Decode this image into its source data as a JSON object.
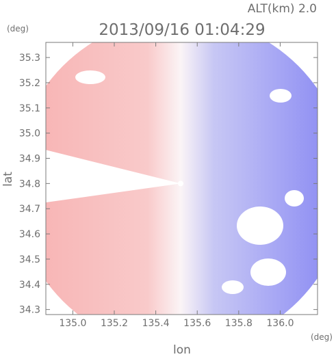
{
  "chart_data": {
    "type": "heatmap",
    "title": "2013/09/16 01:04:29",
    "subtitle": "ALT(km) 2.0",
    "xlabel": "lon",
    "ylabel": "lat",
    "x_unit": "(deg)",
    "y_unit": "(deg)",
    "xlim": [
      134.87,
      136.18
    ],
    "ylim": [
      34.28,
      35.36
    ],
    "x_ticks": [
      135.0,
      135.2,
      135.4,
      135.6,
      135.8,
      136.0
    ],
    "x_tick_labels": [
      "135.0",
      "135.2",
      "135.4",
      "135.6",
      "135.8",
      "136.0"
    ],
    "y_ticks": [
      34.3,
      34.4,
      34.5,
      34.6,
      34.7,
      34.8,
      34.9,
      35.0,
      35.1,
      35.2,
      35.3
    ],
    "y_tick_labels": [
      "34.3",
      "34.4",
      "34.5",
      "34.6",
      "34.7",
      "34.8",
      "34.9",
      "35.0",
      "35.1",
      "35.2",
      "35.3"
    ],
    "radar_center": {
      "lon": 135.52,
      "lat": 34.8
    },
    "radar_range_deg": 0.66,
    "colors": {
      "positive": "#f7b4b4",
      "negative": "#7f7ff5",
      "neutral": "#ffffff",
      "axis": "#7a7a7a",
      "text": "#6e6e6e"
    },
    "grid": false
  }
}
